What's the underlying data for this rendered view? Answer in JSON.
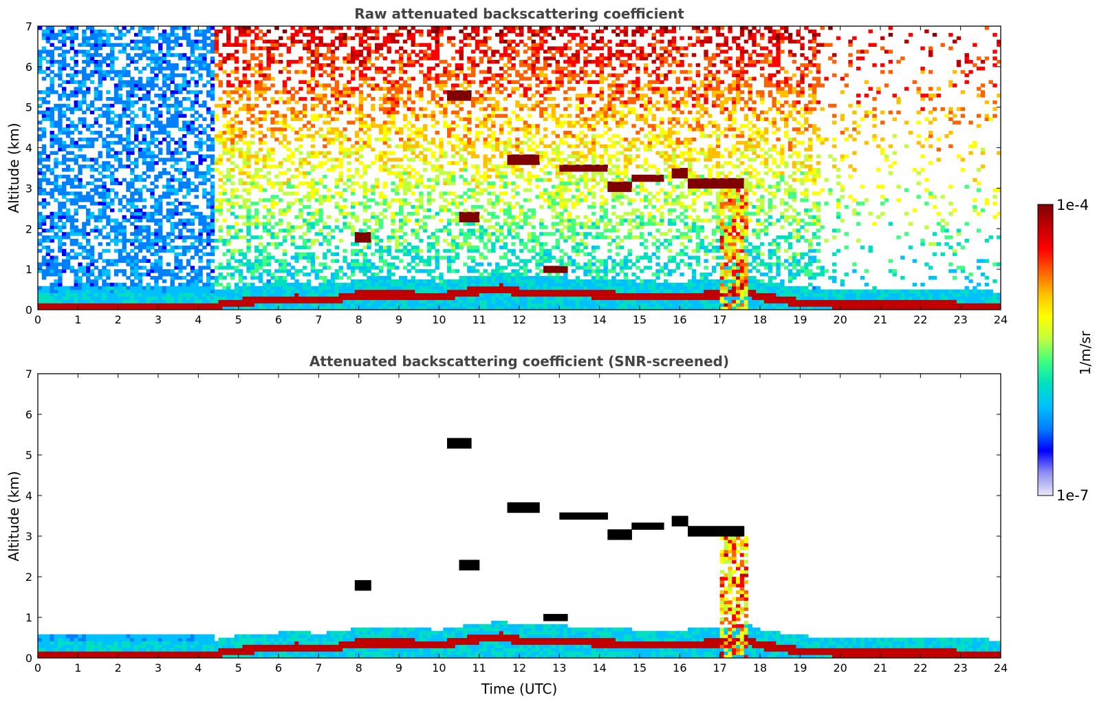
{
  "chart_data": [
    {
      "type": "heatmap",
      "title": "Raw attenuated backscattering coefficient",
      "xlabel": "",
      "ylabel": "Altitude (km)",
      "xlim": [
        0,
        24
      ],
      "ylim": [
        0,
        7
      ],
      "xticks": [
        "0",
        "1",
        "2",
        "3",
        "4",
        "5",
        "6",
        "7",
        "8",
        "9",
        "10",
        "11",
        "12",
        "13",
        "14",
        "15",
        "16",
        "17",
        "18",
        "19",
        "20",
        "21",
        "22",
        "23",
        "24"
      ],
      "yticks": [
        "0",
        "1",
        "2",
        "3",
        "4",
        "5",
        "6",
        "7"
      ],
      "features": {
        "boundary_layer_top_km": [
          [
            0,
            0.05
          ],
          [
            4.4,
            0.05
          ],
          [
            4.5,
            0.15
          ],
          [
            5.5,
            0.25
          ],
          [
            6.5,
            0.3
          ],
          [
            7,
            0.25
          ],
          [
            7.5,
            0.3
          ],
          [
            8,
            0.4
          ],
          [
            9,
            0.4
          ],
          [
            10,
            0.35
          ],
          [
            11,
            0.5
          ],
          [
            11.6,
            0.55
          ],
          [
            12,
            0.45
          ],
          [
            13,
            0.45
          ],
          [
            14,
            0.4
          ],
          [
            15,
            0.35
          ],
          [
            16,
            0.35
          ],
          [
            17,
            0.4
          ],
          [
            17.6,
            0.5
          ],
          [
            18,
            0.35
          ],
          [
            19,
            0.2
          ],
          [
            20,
            0.15
          ],
          [
            22,
            0.15
          ],
          [
            24,
            0.1
          ]
        ],
        "cloud_layers_km": [
          {
            "t0": 10.2,
            "t1": 10.8,
            "alt": 5.3
          },
          {
            "t0": 11.7,
            "t1": 12.5,
            "alt": 3.7
          },
          {
            "t0": 13.0,
            "t1": 14.2,
            "alt": 3.5
          },
          {
            "t0": 14.2,
            "t1": 14.8,
            "alt": 3.05
          },
          {
            "t0": 14.8,
            "t1": 15.6,
            "alt": 3.25
          },
          {
            "t0": 15.8,
            "t1": 16.2,
            "alt": 3.4
          },
          {
            "t0": 16.2,
            "t1": 17.6,
            "alt": 3.1
          },
          {
            "t0": 10.5,
            "t1": 11.0,
            "alt": 2.3
          },
          {
            "t0": 7.9,
            "t1": 8.3,
            "alt": 1.8
          },
          {
            "t0": 12.6,
            "t1": 13.2,
            "alt": 1.0
          }
        ],
        "precip_time_km": [
          17.0,
          17.7
        ]
      }
    },
    {
      "type": "heatmap",
      "title": "Attenuated backscattering coefficient (SNR-screened)",
      "xlabel": "Time (UTC)",
      "ylabel": "Altitude (km)",
      "xlim": [
        0,
        24
      ],
      "ylim": [
        0,
        7
      ],
      "xticks": [
        "0",
        "1",
        "2",
        "3",
        "4",
        "5",
        "6",
        "7",
        "8",
        "9",
        "10",
        "11",
        "12",
        "13",
        "14",
        "15",
        "16",
        "17",
        "18",
        "19",
        "20",
        "21",
        "22",
        "23",
        "24"
      ],
      "yticks": [
        "0",
        "1",
        "2",
        "3",
        "4",
        "5",
        "6",
        "7"
      ]
    }
  ],
  "colorbar": {
    "label": "1/m/sr",
    "max_label": "1e-4",
    "min_label": "1e-7",
    "colors": [
      "#e8e8f8",
      "#9090f0",
      "#0000ff",
      "#0080ff",
      "#00c0ff",
      "#00e0c0",
      "#40ff80",
      "#c0ff40",
      "#ffff00",
      "#ffc000",
      "#ff6000",
      "#ff0000",
      "#c00000",
      "#800000"
    ]
  }
}
